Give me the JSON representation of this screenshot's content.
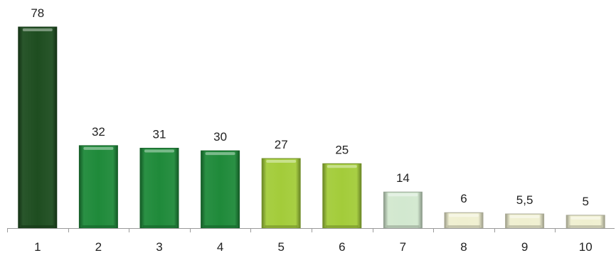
{
  "chart_data": {
    "type": "bar",
    "categories": [
      "1",
      "2",
      "3",
      "4",
      "5",
      "6",
      "7",
      "8",
      "9",
      "10"
    ],
    "values": [
      78,
      32,
      31,
      30,
      27,
      25,
      14,
      6,
      5.5,
      5
    ],
    "value_labels": [
      "78",
      "32",
      "31",
      "30",
      "27",
      "25",
      "14",
      "6",
      "5,5",
      "5"
    ],
    "bar_colors": [
      "#1e4d20",
      "#1f8a3a",
      "#1f8a3a",
      "#1f8a3a",
      "#a3cc3a",
      "#a3cc3a",
      "#d2e8cf",
      "#efefd0",
      "#efefd0",
      "#efefd0"
    ],
    "ylim": [
      0,
      78
    ],
    "grid": false,
    "legend": "none"
  }
}
